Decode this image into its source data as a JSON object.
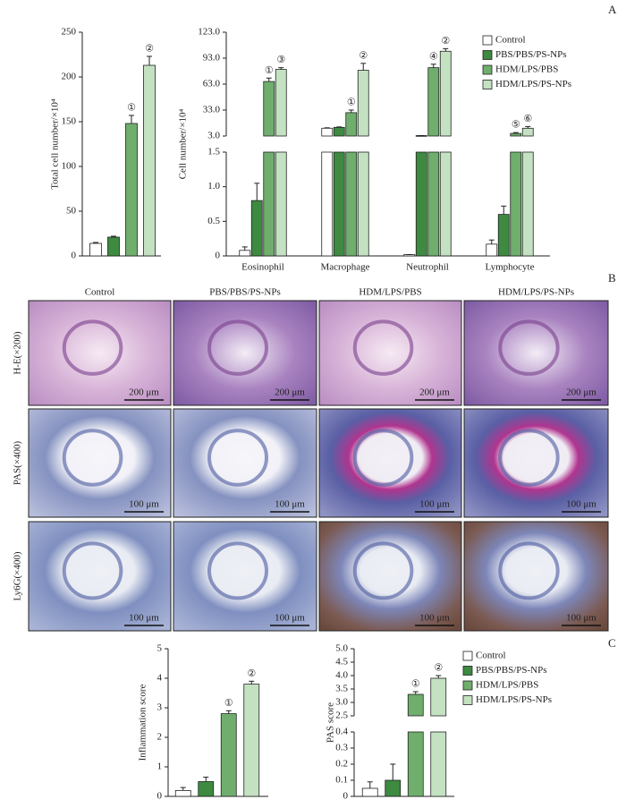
{
  "chart_data": [
    {
      "type": "bar",
      "panel": "A",
      "ylabel": "Total cell number/×10⁴",
      "categories": [
        null
      ],
      "ylim": [
        0,
        250
      ],
      "yticks": [
        0,
        50,
        100,
        150,
        200,
        250
      ],
      "series": [
        {
          "name": "Control",
          "color": "#ffffff",
          "values": [
            14
          ],
          "errors": [
            1
          ],
          "annotations": [
            null
          ]
        },
        {
          "name": "PBS/PBS/PS-NPs",
          "color": "#3d8a40",
          "values": [
            21
          ],
          "errors": [
            1
          ],
          "annotations": [
            null
          ]
        },
        {
          "name": "HDM/LPS/PBS",
          "color": "#6fae6c",
          "values": [
            148
          ],
          "errors": [
            9
          ],
          "annotations": [
            "①"
          ]
        },
        {
          "name": "HDM/LPS/PS-NPs",
          "color": "#c4e2c2",
          "values": [
            213
          ],
          "errors": [
            10
          ],
          "annotations": [
            "②"
          ]
        }
      ]
    },
    {
      "type": "bar",
      "ylabel": "Cell number/×10⁴",
      "legend": true,
      "categories": [
        "Eosinophil",
        "Macrophage",
        "Neutrophil",
        "Lymphocyte"
      ],
      "y_segments": [
        {
          "ylim": [
            0,
            1.5
          ],
          "yticks": [
            0,
            0.5,
            {
              "value": 1,
              "label": "1.0"
            },
            1.5
          ]
        },
        {
          "ylim": [
            3,
            123
          ],
          "yticks": [
            {
              "value": 3,
              "label": "3.0"
            },
            {
              "value": 33,
              "label": "33.0"
            },
            {
              "value": 63,
              "label": "63.0"
            },
            {
              "value": 93,
              "label": "93.0"
            },
            {
              "value": 123,
              "label": "123.0"
            }
          ]
        }
      ],
      "series": [
        {
          "name": "Control",
          "color": "#ffffff",
          "values": [
            0.08,
            12,
            0.02,
            0.17
          ],
          "errors": [
            0.05,
            0.5,
            0,
            0.06
          ],
          "annotations": [
            null,
            null,
            null,
            null
          ]
        },
        {
          "name": "PBS/PBS/PS-NPs",
          "color": "#3d8a40",
          "values": [
            0.8,
            13,
            3.5,
            0.6
          ],
          "errors": [
            0.25,
            0.5,
            0,
            0.12
          ],
          "annotations": [
            null,
            null,
            null,
            null
          ]
        },
        {
          "name": "HDM/LPS/PBS",
          "color": "#6fae6c",
          "values": [
            66,
            30,
            82,
            6
          ],
          "errors": [
            4,
            3,
            4,
            1
          ],
          "annotations": [
            "①",
            "①",
            "④",
            "⑤"
          ]
        },
        {
          "name": "HDM/LPS/PS-NPs",
          "color": "#c4e2c2",
          "values": [
            80,
            79,
            101,
            12
          ],
          "errors": [
            2,
            8,
            3,
            2
          ],
          "annotations": [
            "③",
            "②",
            "②",
            "⑥"
          ]
        }
      ]
    },
    {
      "type": "bar",
      "panel": "C",
      "ylabel": "Inflammation score",
      "categories": [
        null
      ],
      "ylim": [
        0,
        5
      ],
      "yticks": [
        0,
        1,
        2,
        3,
        4,
        5
      ],
      "series": [
        {
          "name": "Control",
          "color": "#ffffff",
          "values": [
            0.2
          ],
          "errors": [
            0.1
          ],
          "annotations": [
            null
          ]
        },
        {
          "name": "PBS/PBS/PS-NPs",
          "color": "#3d8a40",
          "values": [
            0.5
          ],
          "errors": [
            0.15
          ],
          "annotations": [
            null
          ]
        },
        {
          "name": "HDM/LPS/PBS",
          "color": "#6fae6c",
          "values": [
            2.8
          ],
          "errors": [
            0.1
          ],
          "annotations": [
            "①"
          ]
        },
        {
          "name": "HDM/LPS/PS-NPs",
          "color": "#c4e2c2",
          "values": [
            3.8
          ],
          "errors": [
            0.1
          ],
          "annotations": [
            "②"
          ]
        }
      ]
    },
    {
      "type": "bar",
      "ylabel": "PAS score",
      "legend": true,
      "categories": [
        null
      ],
      "y_segments": [
        {
          "ylim": [
            0,
            0.4
          ],
          "yticks": [
            0,
            0.1,
            0.2,
            0.3,
            0.4
          ]
        },
        {
          "ylim": [
            2.5,
            5
          ],
          "yticks": [
            2.5,
            {
              "value": 3,
              "label": "3.0"
            },
            3.5,
            {
              "value": 4,
              "label": "4.0"
            },
            4.5,
            {
              "value": 5,
              "label": "5.0"
            }
          ]
        }
      ],
      "series": [
        {
          "name": "Control",
          "color": "#ffffff",
          "values": [
            0.05
          ],
          "errors": [
            0.04
          ],
          "annotations": [
            null
          ]
        },
        {
          "name": "PBS/PBS/PS-NPs",
          "color": "#3d8a40",
          "values": [
            0.1
          ],
          "errors": [
            0.1
          ],
          "annotations": [
            null
          ]
        },
        {
          "name": "HDM/LPS/PBS",
          "color": "#6fae6c",
          "values": [
            3.3
          ],
          "errors": [
            0.1
          ],
          "annotations": [
            "①"
          ]
        },
        {
          "name": "HDM/LPS/PS-NPs",
          "color": "#c4e2c2",
          "values": [
            3.9
          ],
          "errors": [
            0.1
          ],
          "annotations": [
            "②"
          ]
        }
      ]
    }
  ],
  "micrographs": {
    "panel": "B",
    "columns": [
      "Control",
      "PBS/PBS/PS-NPs",
      "HDM/LPS/PBS",
      "HDM/LPS/PS-NPs"
    ],
    "rows": [
      {
        "label": "H-E(×200)",
        "scale_bar": "200 μm"
      },
      {
        "label": "PAS(×400)",
        "scale_bar": "100 μm"
      },
      {
        "label": "Ly6G(×400)",
        "scale_bar": "100 μm"
      }
    ]
  }
}
